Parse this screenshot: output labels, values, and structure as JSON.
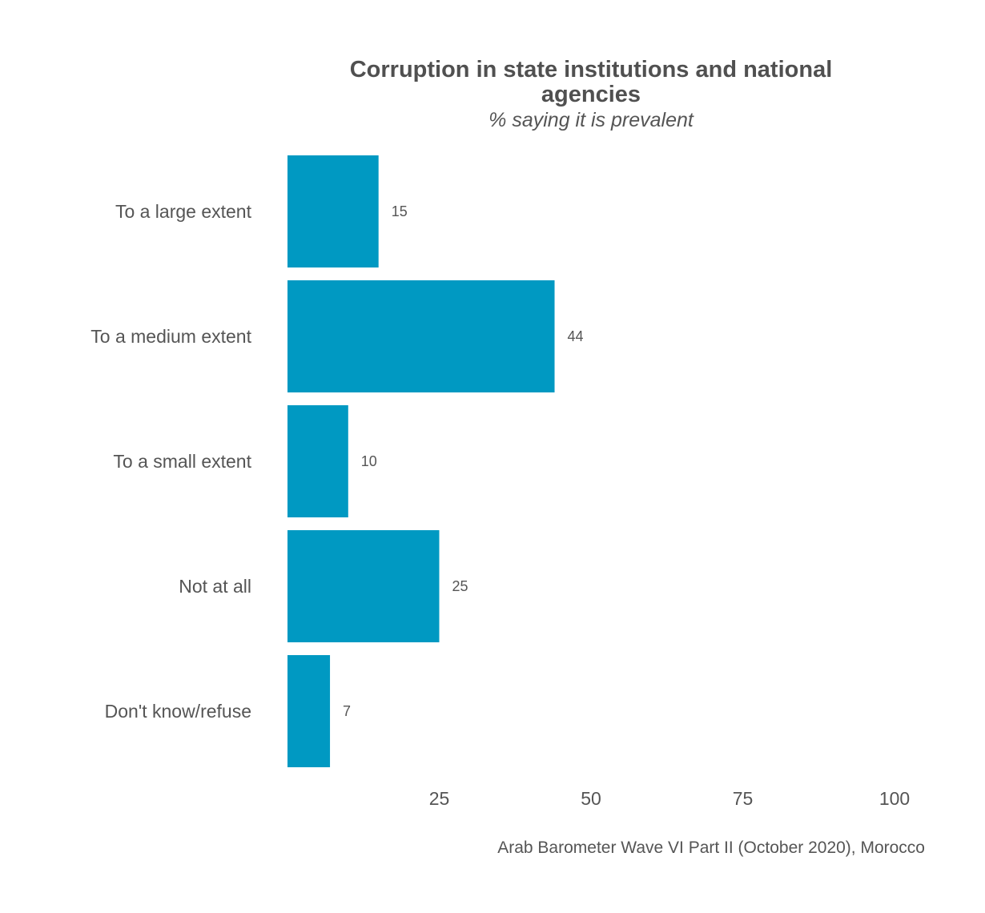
{
  "chart_data": {
    "type": "bar",
    "orientation": "horizontal",
    "title": "Corruption in state institutions and national agencies",
    "title_lines": [
      "Corruption in state institutions and national",
      "agencies"
    ],
    "subtitle": "% saying it is prevalent",
    "categories": [
      "To a large extent",
      "To a medium extent",
      "To a small extent",
      "Not at all",
      "Don't know/refuse"
    ],
    "values": [
      15,
      44,
      10,
      25,
      7
    ],
    "value_labels": [
      "15",
      "44",
      "10",
      "25",
      "7"
    ],
    "xlim": [
      0,
      100
    ],
    "xticks": [
      25,
      50,
      75,
      100
    ],
    "xtick_labels": [
      "25",
      "50",
      "75",
      "100"
    ],
    "xlabel": "",
    "ylabel": "",
    "grid": false,
    "legend": "none",
    "caption": "Arab Barometer Wave VI Part II (October 2020), Morocco",
    "colors": {
      "bar": "#0099C2",
      "title": "#505050",
      "text": "#555555"
    }
  }
}
